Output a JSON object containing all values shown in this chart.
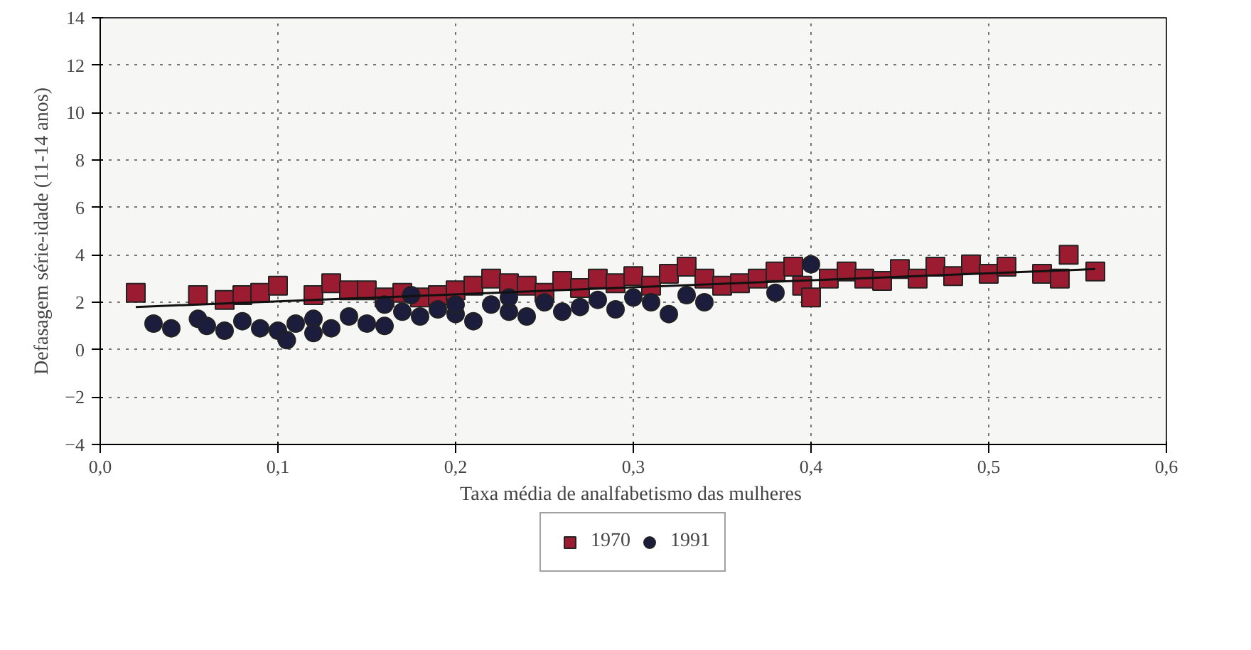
{
  "chart_data": {
    "type": "scatter",
    "xlabel": "Taxa média de analfabetismo  das mulheres",
    "ylabel": "Defasagem série-idade (11-14 anos)",
    "xlim": [
      0.0,
      0.6
    ],
    "xticks": [
      {
        "value": 0.0,
        "label": "0,0"
      },
      {
        "value": 0.1,
        "label": "0,1"
      },
      {
        "value": 0.2,
        "label": "0,2"
      },
      {
        "value": 0.3,
        "label": "0,3"
      },
      {
        "value": 0.4,
        "label": "0,4"
      },
      {
        "value": 0.5,
        "label": "0,5"
      },
      {
        "value": 0.6,
        "label": "0,6"
      }
    ],
    "ylim": [
      -4,
      14
    ],
    "yticks": [
      -4,
      -2,
      0,
      2,
      4,
      6,
      8,
      10,
      12,
      14
    ],
    "grid": true,
    "legend": "bottom",
    "series": [
      {
        "name": "1970",
        "color": "#9b1b30",
        "marker": "square",
        "x": [
          0.02,
          0.055,
          0.07,
          0.08,
          0.09,
          0.1,
          0.12,
          0.13,
          0.14,
          0.15,
          0.16,
          0.17,
          0.18,
          0.19,
          0.2,
          0.21,
          0.22,
          0.23,
          0.24,
          0.25,
          0.26,
          0.27,
          0.28,
          0.29,
          0.3,
          0.31,
          0.32,
          0.33,
          0.34,
          0.35,
          0.36,
          0.37,
          0.38,
          0.39,
          0.395,
          0.4,
          0.41,
          0.42,
          0.43,
          0.44,
          0.45,
          0.46,
          0.47,
          0.48,
          0.49,
          0.5,
          0.51,
          0.53,
          0.54,
          0.545,
          0.56
        ],
        "values": [
          2.4,
          2.3,
          2.1,
          2.3,
          2.4,
          2.7,
          2.3,
          2.8,
          2.5,
          2.5,
          2.2,
          2.4,
          2.2,
          2.3,
          2.5,
          2.7,
          3.0,
          2.8,
          2.7,
          2.4,
          2.9,
          2.6,
          3.0,
          2.8,
          3.1,
          2.7,
          3.2,
          3.5,
          3.0,
          2.7,
          2.8,
          3.0,
          3.3,
          3.5,
          2.7,
          2.2,
          3.0,
          3.3,
          3.0,
          2.9,
          3.4,
          3.0,
          3.5,
          3.1,
          3.6,
          3.2,
          3.5,
          3.2,
          3.0,
          4.0,
          3.3
        ]
      },
      {
        "name": "1991",
        "color": "#1c1c3c",
        "marker": "circle",
        "x": [
          0.03,
          0.04,
          0.055,
          0.06,
          0.07,
          0.08,
          0.09,
          0.1,
          0.105,
          0.11,
          0.12,
          0.12,
          0.13,
          0.14,
          0.15,
          0.16,
          0.16,
          0.17,
          0.175,
          0.18,
          0.19,
          0.2,
          0.2,
          0.21,
          0.22,
          0.23,
          0.23,
          0.24,
          0.25,
          0.26,
          0.27,
          0.28,
          0.29,
          0.3,
          0.31,
          0.32,
          0.33,
          0.34,
          0.38,
          0.4
        ],
        "values": [
          1.1,
          0.9,
          1.3,
          1.0,
          0.8,
          1.2,
          0.9,
          0.8,
          0.4,
          1.1,
          1.3,
          0.7,
          0.9,
          1.4,
          1.1,
          1.0,
          1.9,
          1.6,
          2.3,
          1.4,
          1.7,
          1.5,
          1.9,
          1.2,
          1.9,
          1.6,
          2.2,
          1.4,
          2.0,
          1.6,
          1.8,
          2.1,
          1.7,
          2.2,
          2.0,
          1.5,
          2.3,
          2.0,
          2.4,
          3.6
        ]
      },
      {
        "type": "line",
        "color": "#111111",
        "marker": "none",
        "x": [
          0.02,
          0.56
        ],
        "values": [
          1.8,
          3.4
        ]
      }
    ]
  }
}
